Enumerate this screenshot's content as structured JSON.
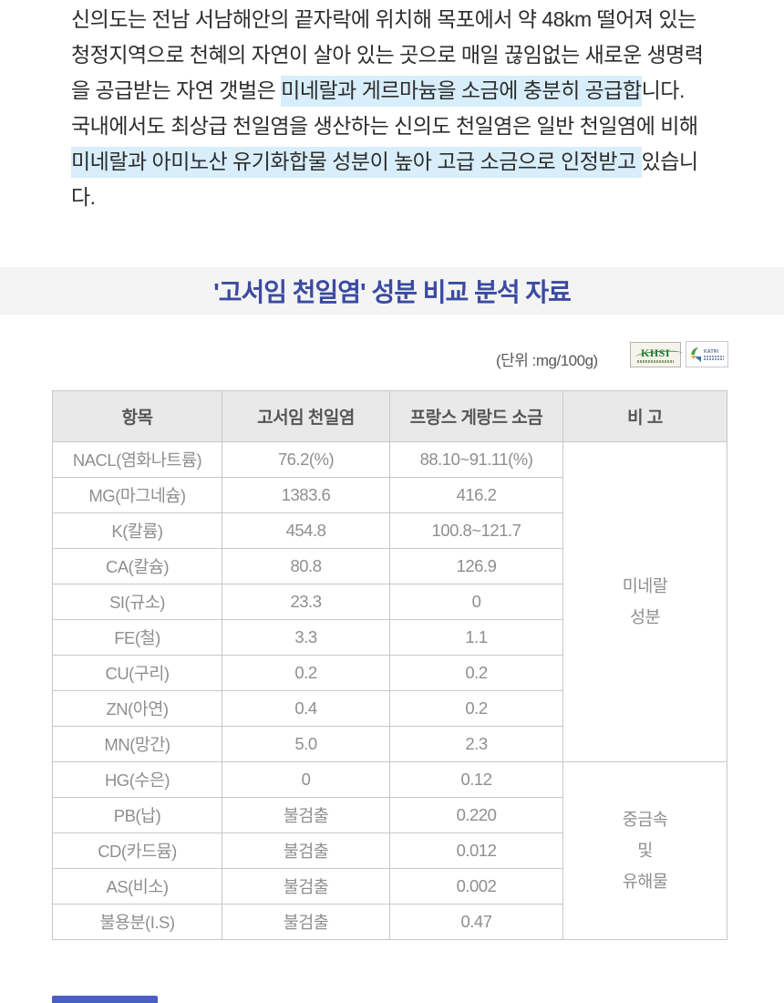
{
  "intro": {
    "lines": [
      {
        "segments": [
          {
            "text": "신의도는 전남 서남해안의 끝자락에 위치해 목포에서 약 48km 떨어져 있는",
            "hl": false
          }
        ]
      },
      {
        "segments": [
          {
            "text": "청정지역으로 천혜의 자연이 살아 있는 곳으로 매일 끊임없는 새로운 생명력",
            "hl": false
          }
        ]
      },
      {
        "segments": [
          {
            "text": "을 공급받는 자연 갯벌은 ",
            "hl": false
          },
          {
            "text": "미네랄과 게르마늄을 소금에 충분히 공급합",
            "hl": true
          },
          {
            "text": "니다.",
            "hl": false
          }
        ]
      },
      {
        "segments": [
          {
            "text": "국내에서도 최상급 천일염을 생산하는 신의도 천일염은 일반 천일염에 비해",
            "hl": false
          }
        ]
      },
      {
        "segments": [
          {
            "text": "미네랄과 아미노산 유기화합물 성분이 높아 고급 소금으로 인정받고 ",
            "hl": true
          },
          {
            "text": "있습니",
            "hl": false
          }
        ]
      },
      {
        "segments": [
          {
            "text": "다.",
            "hl": false
          }
        ]
      }
    ]
  },
  "section": {
    "title": "'고서임 천일염' 성분 비교 분석 자료",
    "unit_label": "(단위 :mg/100g)"
  },
  "logos": {
    "khsi_text": "KHSI",
    "katri_text": "KATRI"
  },
  "table": {
    "headers": [
      "항목",
      "고서임 천일염",
      "프랑스 게랑드 소금",
      "비 고"
    ],
    "rows": [
      [
        "NACL(염화나트륨)",
        "76.2(%)",
        "88.10~91.11(%)"
      ],
      [
        "MG(마그네슘)",
        "1383.6",
        "416.2"
      ],
      [
        "K(칼륨)",
        "454.8",
        "100.8~121.7"
      ],
      [
        "CA(칼슘)",
        "80.8",
        "126.9"
      ],
      [
        "SI(규소)",
        "23.3",
        "0"
      ],
      [
        "FE(철)",
        "3.3",
        "1.1"
      ],
      [
        "CU(구리)",
        "0.2",
        "0.2"
      ],
      [
        "ZN(아연)",
        "0.4",
        "0.2"
      ],
      [
        "MN(망간)",
        "5.0",
        "2.3"
      ],
      [
        "HG(수은)",
        "0",
        "0.12"
      ],
      [
        "PB(납)",
        "불검출",
        "0.220"
      ],
      [
        "CD(카드뮴)",
        "불검출",
        "0.012"
      ],
      [
        "AS(비소)",
        "불검출",
        "0.002"
      ],
      [
        "불용분(I.S)",
        "불검출",
        "0.47"
      ]
    ],
    "groups": [
      {
        "label_lines": [
          "미네랄",
          "성분"
        ],
        "span": 9
      },
      {
        "label_lines": [
          "중금속",
          "및",
          "유해물"
        ],
        "span": 5
      }
    ]
  },
  "colors": {
    "accent_blue": "#3b4ba1",
    "highlight_blue": "#d8eefa",
    "bottom_bar_blue": "#4a5fc4"
  }
}
